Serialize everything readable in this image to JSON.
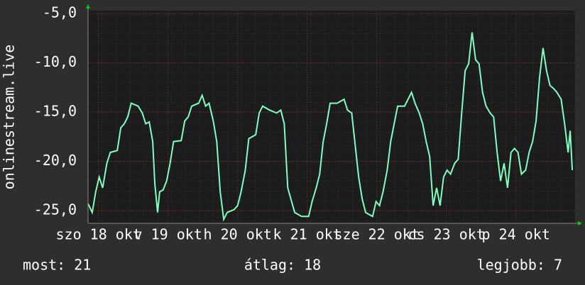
{
  "chart_data": {
    "type": "line",
    "y_label": "onlinestream.live",
    "xlim": [
      0,
      7
    ],
    "ylim": [
      -26.3,
      -4.7
    ],
    "xticks": [
      {
        "value": 0.15,
        "label": "szo 18 okt"
      },
      {
        "value": 1.15,
        "label": "v 19 okt"
      },
      {
        "value": 2.15,
        "label": "h 20 okt"
      },
      {
        "value": 3.15,
        "label": "k 21 okt"
      },
      {
        "value": 4.15,
        "label": "sze 22 okt"
      },
      {
        "value": 5.15,
        "label": "cs 23 okt"
      },
      {
        "value": 6.15,
        "label": "p 24 okt"
      }
    ],
    "yticks": [
      {
        "value": -5,
        "label": "-5,0"
      },
      {
        "value": -10,
        "label": "-10,0"
      },
      {
        "value": -15,
        "label": "-15,0"
      },
      {
        "value": -20,
        "label": "-20,0"
      },
      {
        "value": -25,
        "label": "-25,0"
      }
    ],
    "grid": true,
    "series": [
      {
        "color": "#80ffc0",
        "x": [
          0,
          0.06,
          0.11,
          0.16,
          0.21,
          0.27,
          0.32,
          0.42,
          0.47,
          0.52,
          0.57,
          0.62,
          0.72,
          0.78,
          0.83,
          0.88,
          0.93,
          0.96,
          1.0,
          1.03,
          1.08,
          1.13,
          1.18,
          1.23,
          1.34,
          1.39,
          1.44,
          1.49,
          1.59,
          1.64,
          1.69,
          1.74,
          1.8,
          1.85,
          1.9,
          1.95,
          2.0,
          2.1,
          2.15,
          2.2,
          2.26,
          2.31,
          2.41,
          2.46,
          2.51,
          2.61,
          2.71,
          2.77,
          2.82,
          2.87,
          2.97,
          3.07,
          3.17,
          3.22,
          3.28,
          3.33,
          3.38,
          3.43,
          3.48,
          3.58,
          3.68,
          3.73,
          3.79,
          3.89,
          3.94,
          3.99,
          4.09,
          4.14,
          4.19,
          4.24,
          4.3,
          4.35,
          4.4,
          4.45,
          4.55,
          4.6,
          4.65,
          4.7,
          4.76,
          4.81,
          4.86,
          4.91,
          4.96,
          5.01,
          5.06,
          5.11,
          5.16,
          5.21,
          5.27,
          5.32,
          5.37,
          5.42,
          5.47,
          5.52,
          5.57,
          5.62,
          5.67,
          5.72,
          5.78,
          5.83,
          5.88,
          5.93,
          5.98,
          6.03,
          6.08,
          6.13,
          6.18,
          6.23,
          6.29,
          6.34,
          6.39,
          6.44,
          6.49,
          6.54,
          6.59,
          6.64,
          6.69,
          6.74,
          6.8,
          6.85,
          6.9,
          6.93,
          6.96
        ],
        "values": [
          -24.3,
          -25.2,
          -23.1,
          -21.6,
          -22.7,
          -20.2,
          -19.1,
          -18.9,
          -16.6,
          -16.2,
          -15.5,
          -14.1,
          -14.4,
          -15.1,
          -16.2,
          -16.0,
          -18.0,
          -22.3,
          -25.2,
          -23.1,
          -22.9,
          -22.0,
          -20.2,
          -18.0,
          -17.9,
          -15.9,
          -15.5,
          -14.4,
          -14.1,
          -13.3,
          -14.4,
          -14.1,
          -15.9,
          -18.0,
          -23.1,
          -25.9,
          -25.2,
          -24.9,
          -24.5,
          -23.1,
          -20.9,
          -17.7,
          -17.3,
          -15.1,
          -14.4,
          -14.8,
          -15.1,
          -14.8,
          -16.2,
          -22.7,
          -25.2,
          -25.6,
          -25.6,
          -24.1,
          -22.7,
          -21.3,
          -18.0,
          -16.2,
          -14.1,
          -14.1,
          -13.7,
          -14.8,
          -15.1,
          -21.6,
          -23.8,
          -25.2,
          -25.6,
          -24.1,
          -24.5,
          -23.1,
          -20.9,
          -18.0,
          -16.2,
          -14.4,
          -14.4,
          -13.7,
          -13.0,
          -14.1,
          -15.1,
          -16.2,
          -18.0,
          -19.5,
          -24.5,
          -22.7,
          -24.5,
          -21.6,
          -20.9,
          -21.3,
          -20.2,
          -19.8,
          -15.1,
          -10.8,
          -10.1,
          -6.9,
          -9.7,
          -10.1,
          -13.0,
          -14.4,
          -15.1,
          -15.5,
          -19.1,
          -22.0,
          -20.2,
          -22.7,
          -19.1,
          -18.7,
          -19.1,
          -21.3,
          -20.9,
          -19.1,
          -18.0,
          -15.9,
          -11.5,
          -8.5,
          -10.8,
          -12.3,
          -12.6,
          -13.0,
          -13.7,
          -16.2,
          -19.1,
          -16.9,
          -20.9
        ]
      }
    ],
    "stats": [
      "most: 21",
      "átlag: 18",
      "legjobb: 7"
    ]
  }
}
